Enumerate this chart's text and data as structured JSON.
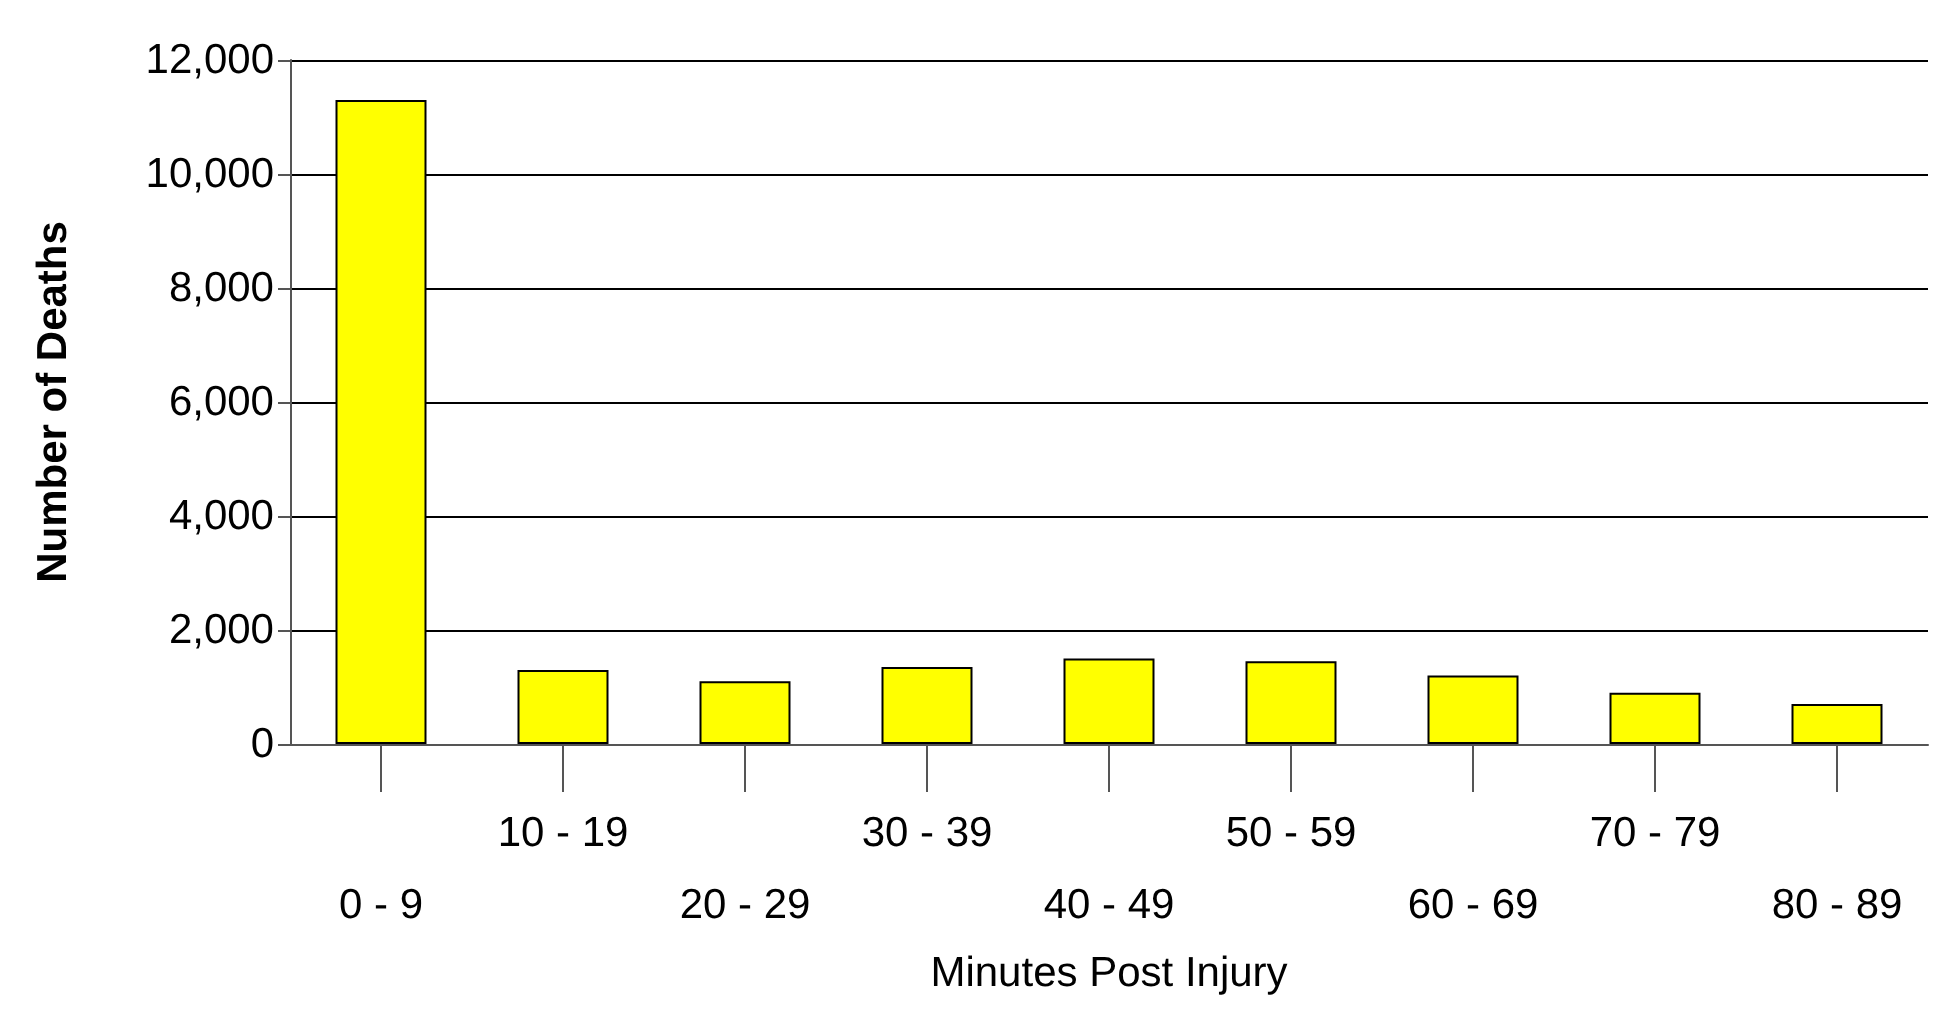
{
  "chart_data": {
    "type": "bar",
    "xlabel": "Minutes Post Injury",
    "ylabel": "Number of Deaths",
    "categories": [
      "0 - 9",
      "10 - 19",
      "20 - 29",
      "30 - 39",
      "40 - 49",
      "50 - 59",
      "60 - 69",
      "70 - 79",
      "80 - 89"
    ],
    "values": [
      11300,
      1300,
      1100,
      1350,
      1500,
      1450,
      1200,
      900,
      700
    ],
    "color": "#ffff00",
    "ylim": [
      0,
      12000
    ],
    "yticks": [
      0,
      {
        "value": 2000,
        "label": "2,000"
      },
      {
        "value": 4000,
        "label": "4,000"
      },
      {
        "value": 6000,
        "label": "6,000"
      },
      {
        "value": 8000,
        "label": "8,000"
      },
      {
        "value": 10000,
        "label": "10,000"
      },
      {
        "value": 12000,
        "label": "12,000"
      }
    ],
    "grid": "y"
  }
}
